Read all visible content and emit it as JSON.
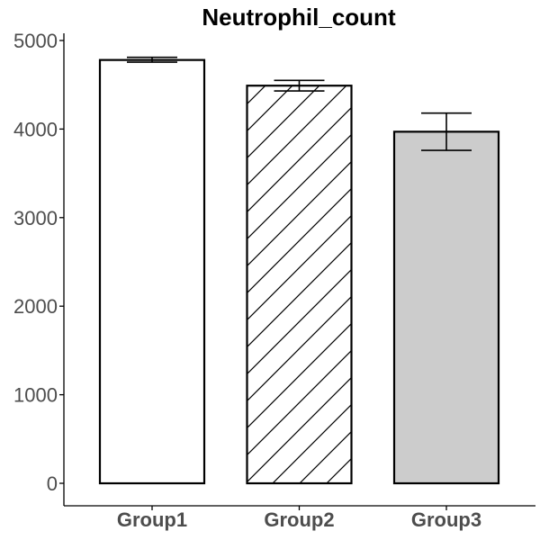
{
  "chart_data": {
    "type": "bar",
    "title": "Neutrophil_count",
    "xlabel": "",
    "ylabel": "",
    "categories": [
      "Group1",
      "Group2",
      "Group3"
    ],
    "values": [
      4780,
      4490,
      3970
    ],
    "error_low": [
      4755,
      4430,
      3760
    ],
    "error_high": [
      4810,
      4550,
      4180
    ],
    "fills": [
      "white",
      "hatched",
      "grey"
    ],
    "colors": {
      "white": "#ffffff",
      "grey": "#cccccc",
      "stroke": "#000000",
      "hatch": "#000000"
    },
    "ylim": [
      0,
      5000
    ],
    "yticks": [
      0,
      1000,
      2000,
      3000,
      4000,
      5000
    ],
    "grid": false,
    "legend": "none"
  }
}
